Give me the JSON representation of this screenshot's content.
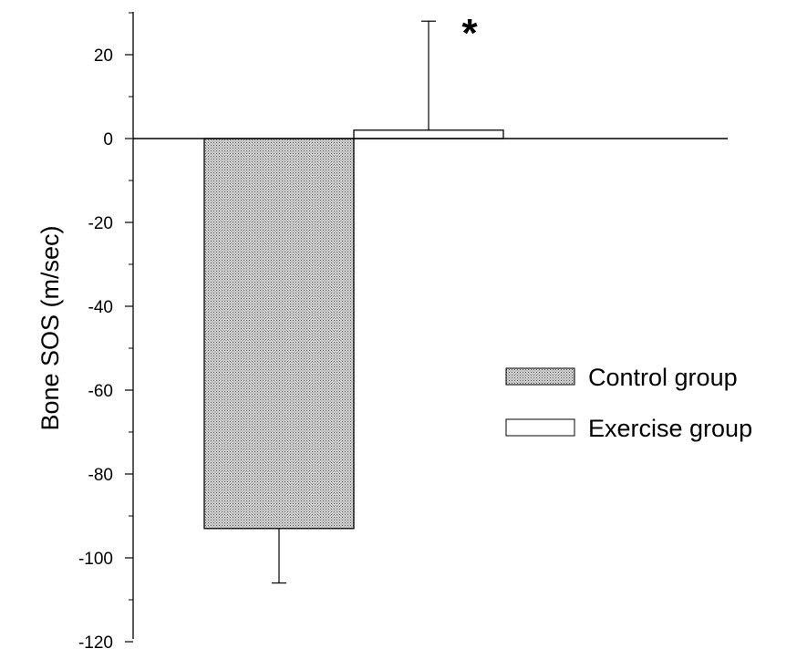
{
  "chart_data": {
    "type": "bar",
    "title": "",
    "xlabel": "",
    "ylabel": "Bone SOS (m/sec)",
    "ylim": [
      -120,
      30
    ],
    "yticks": [
      20,
      0,
      -20,
      -40,
      -60,
      -80,
      -100,
      -120
    ],
    "ytick_labels": [
      "20",
      "0",
      "-20",
      "-40",
      "-60",
      "-80",
      "-100",
      "-120"
    ],
    "grid": false,
    "legend_position": "right",
    "series": [
      {
        "name": "Control group",
        "value": -93,
        "error": 13,
        "error_direction": "down",
        "fill": "stippled"
      },
      {
        "name": "Exercise group",
        "value": 2,
        "error": 26,
        "error_direction": "up",
        "fill": "white"
      }
    ],
    "annotations": [
      {
        "text": "*",
        "series": "Exercise group"
      }
    ]
  }
}
